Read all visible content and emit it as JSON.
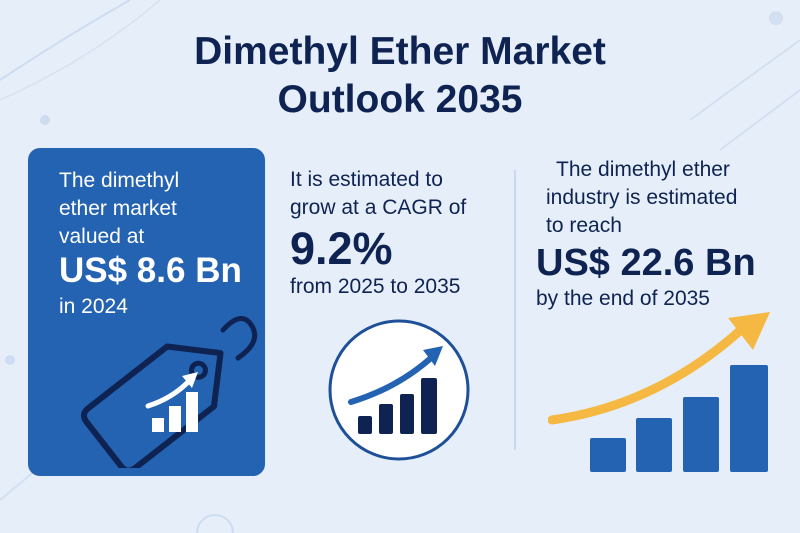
{
  "title": {
    "line1": "Dimethyl Ether Market",
    "line2": "Outlook 2035"
  },
  "market_value": {
    "lines": [
      "The dimethyl",
      "ether market",
      "valued at"
    ],
    "value": "US$ 8.6 Bn",
    "year": "in 2024",
    "icon": "price-tag-growth-icon"
  },
  "cagr": {
    "lines": [
      "It is estimated to",
      "grow at a CAGR of"
    ],
    "value": "9.2%",
    "period": "from 2025 to 2035",
    "icon": "circle-growth-chart-icon"
  },
  "forecast": {
    "lines": [
      "The dimethyl ether",
      "industry is estimated",
      "to reach"
    ],
    "value": "US$ 22.6 Bn",
    "period": "by the end of 2035",
    "icon": "rising-bar-chart-icon"
  },
  "colors": {
    "navy": "#0f2352",
    "blue": "#2462b2",
    "arrow": "#f5b843",
    "background": "#e6eff9"
  }
}
